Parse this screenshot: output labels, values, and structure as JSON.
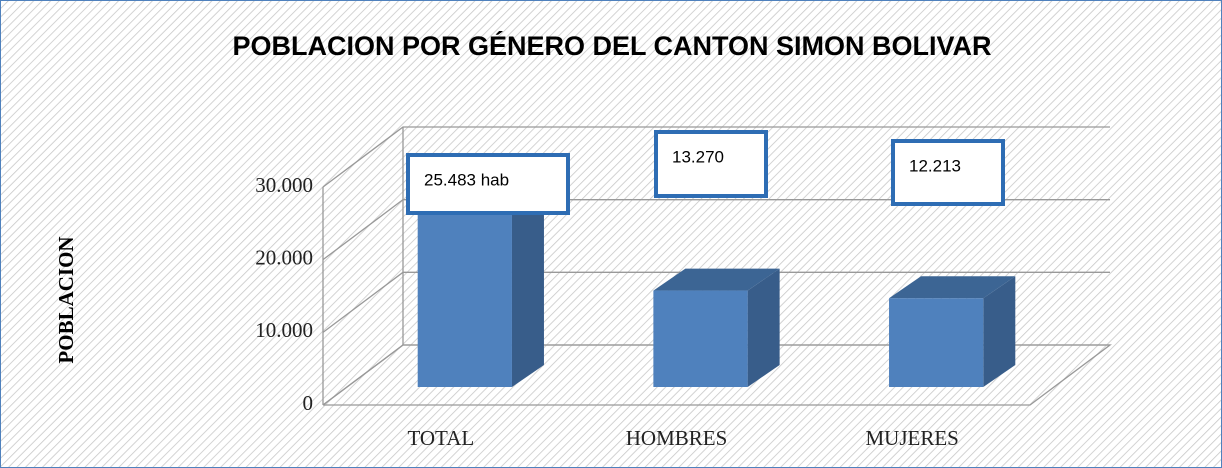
{
  "chart_data": {
    "type": "bar3d",
    "title": "POBLACION POR GÉNERO DEL CANTON SIMON BOLIVAR",
    "y_label": "POBLACION",
    "categories": [
      "TOTAL",
      "HOMBRES",
      "MUJERES"
    ],
    "values": [
      25483,
      13270,
      12213
    ],
    "value_labels": [
      "25.483 hab",
      "13.270",
      "12.213"
    ],
    "color": "#4f81bd",
    "ylim": [
      0,
      30000
    ],
    "yticks": [
      0,
      {
        "value": 10000,
        "label": "10.000"
      },
      {
        "value": 20000,
        "label": "20.000"
      },
      {
        "value": 30000,
        "label": "30.000"
      }
    ],
    "grid": true
  }
}
